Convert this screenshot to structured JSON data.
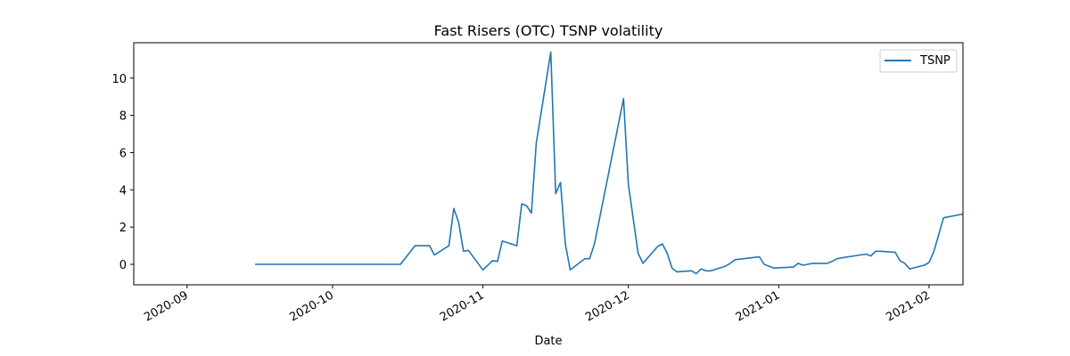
{
  "chart_data": {
    "type": "line",
    "title": "Fast Risers (OTC) TSNP volatility",
    "xlabel": "Date",
    "ylabel": "",
    "x_axis_type": "date",
    "xlim": [
      "2020-08-21",
      "2021-02-08"
    ],
    "ylim": [
      -1.1,
      11.9
    ],
    "xticks": [
      {
        "date": "2020-09-01",
        "label": "2020-09"
      },
      {
        "date": "2020-10-01",
        "label": "2020-10"
      },
      {
        "date": "2020-11-01",
        "label": "2020-11"
      },
      {
        "date": "2020-12-01",
        "label": "2020-12"
      },
      {
        "date": "2021-01-01",
        "label": "2021-01"
      },
      {
        "date": "2021-02-01",
        "label": "2021-02"
      }
    ],
    "yticks": [
      0,
      2,
      4,
      6,
      8,
      10
    ],
    "grid": false,
    "legend_position": "top-right",
    "series": [
      {
        "name": "TSNP",
        "color": "#1f77b4",
        "x": [
          "2020-09-15",
          "2020-10-15",
          "2020-10-18",
          "2020-10-21",
          "2020-10-22",
          "2020-10-25",
          "2020-10-26",
          "2020-10-27",
          "2020-10-28",
          "2020-10-29",
          "2020-11-01",
          "2020-11-03",
          "2020-11-04",
          "2020-11-05",
          "2020-11-08",
          "2020-11-09",
          "2020-11-10",
          "2020-11-11",
          "2020-11-12",
          "2020-11-15",
          "2020-11-16",
          "2020-11-17",
          "2020-11-18",
          "2020-11-19",
          "2020-11-22",
          "2020-11-23",
          "2020-11-24",
          "2020-11-30",
          "2020-12-01",
          "2020-12-03",
          "2020-12-04",
          "2020-12-07",
          "2020-12-08",
          "2020-12-09",
          "2020-12-10",
          "2020-12-11",
          "2020-12-14",
          "2020-12-15",
          "2020-12-16",
          "2020-12-17",
          "2020-12-18",
          "2020-12-21",
          "2020-12-22",
          "2020-12-23",
          "2020-12-28",
          "2020-12-29",
          "2020-12-31",
          "2021-01-04",
          "2021-01-05",
          "2021-01-06",
          "2021-01-08",
          "2021-01-11",
          "2021-01-12",
          "2021-01-13",
          "2021-01-14",
          "2021-01-19",
          "2021-01-20",
          "2021-01-21",
          "2021-01-22",
          "2021-01-25",
          "2021-01-26",
          "2021-01-27",
          "2021-01-28",
          "2021-01-31",
          "2021-02-01",
          "2021-02-02",
          "2021-02-03",
          "2021-02-04",
          "2021-02-08"
        ],
        "y": [
          0.0,
          0.0,
          1.0,
          1.0,
          0.5,
          1.0,
          3.0,
          2.25,
          0.7,
          0.75,
          -0.3,
          0.2,
          0.15,
          1.25,
          1.0,
          3.25,
          3.15,
          2.75,
          6.5,
          11.4,
          3.8,
          4.4,
          1.1,
          -0.3,
          0.3,
          0.3,
          1.1,
          8.9,
          4.3,
          0.6,
          0.05,
          0.95,
          1.1,
          0.6,
          -0.2,
          -0.4,
          -0.35,
          -0.5,
          -0.25,
          -0.35,
          -0.35,
          -0.1,
          0.05,
          0.25,
          0.4,
          0.0,
          -0.2,
          -0.15,
          0.05,
          -0.05,
          0.05,
          0.05,
          0.15,
          0.3,
          0.35,
          0.55,
          0.45,
          0.7,
          0.7,
          0.65,
          0.2,
          0.05,
          -0.25,
          -0.05,
          0.1,
          0.7,
          1.6,
          2.5,
          2.7
        ]
      }
    ]
  }
}
